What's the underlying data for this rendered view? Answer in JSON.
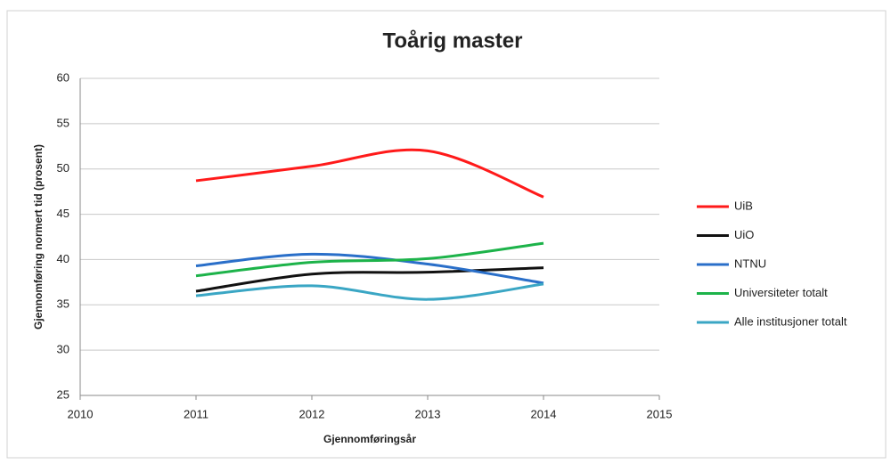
{
  "chart_data": {
    "type": "line",
    "title": "Toårig master",
    "xlabel": "Gjennomføringsår",
    "ylabel": "Gjennomføring normert tid (prosent)",
    "x": [
      2011,
      2012,
      2013,
      2014
    ],
    "series": [
      {
        "name": "UiB",
        "color": "#ff1a1a",
        "values": [
          48.7,
          50.3,
          52.0,
          46.9
        ]
      },
      {
        "name": "UiO",
        "color": "#111111",
        "values": [
          36.5,
          38.4,
          38.6,
          39.1
        ]
      },
      {
        "name": "NTNU",
        "color": "#2a6fc9",
        "values": [
          39.3,
          40.6,
          39.5,
          37.4
        ]
      },
      {
        "name": "Universiteter totalt",
        "color": "#1db34a",
        "values": [
          38.2,
          39.7,
          40.1,
          41.8
        ]
      },
      {
        "name": "Alle institusjoner totalt",
        "color": "#3aa6c4",
        "values": [
          36.0,
          37.1,
          35.6,
          37.3
        ]
      }
    ],
    "xlim": [
      2010,
      2015
    ],
    "xticks": [
      2010,
      2011,
      2012,
      2013,
      2014,
      2015
    ],
    "ylim": [
      25,
      60
    ],
    "yticks": [
      25,
      30,
      35,
      40,
      45,
      50,
      55,
      60
    ],
    "grid": true,
    "smooth": true,
    "legend": "right"
  }
}
